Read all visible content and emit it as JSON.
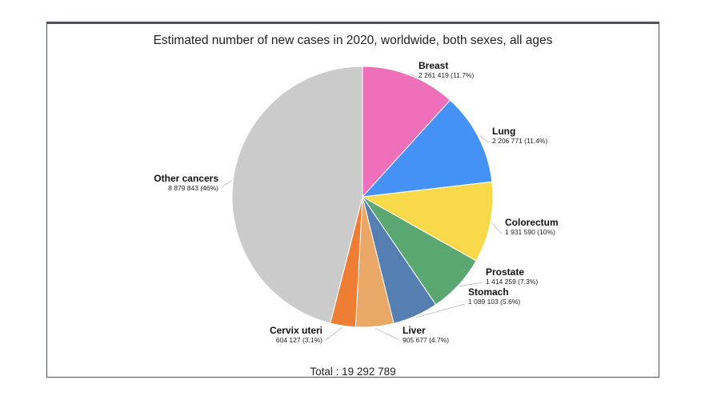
{
  "chart_data": {
    "type": "pie",
    "title": "Estimated number of new cases in 2020, worldwide, both sexes, all ages",
    "total_label": "Total : 19 292 789",
    "slices": [
      {
        "name": "Breast",
        "value": 2261419,
        "label": "2 261 419 (11.7%)",
        "color": "#ee6fba"
      },
      {
        "name": "Lung",
        "value": 2206771,
        "label": "2 206 771 (11.4%)",
        "color": "#4492f5"
      },
      {
        "name": "Colorectum",
        "value": 1931590,
        "label": "1 931 590 (10%)",
        "color": "#f8d94a"
      },
      {
        "name": "Prostate",
        "value": 1414259,
        "label": "1 414 259 (7.3%)",
        "color": "#5aa771"
      },
      {
        "name": "Stomach",
        "value": 1089103,
        "label": "1 089 103 (5.6%)",
        "color": "#557fb1"
      },
      {
        "name": "Liver",
        "value": 905677,
        "label": "905 677 (4.7%)",
        "color": "#e9a865"
      },
      {
        "name": "Cervix uteri",
        "value": 604127,
        "label": "604 127 (3.1%)",
        "color": "#ee7e33"
      },
      {
        "name": "Other cancers",
        "value": 8879843,
        "label": "8 879 843 (46%)",
        "color": "#cbcbcb"
      }
    ]
  }
}
